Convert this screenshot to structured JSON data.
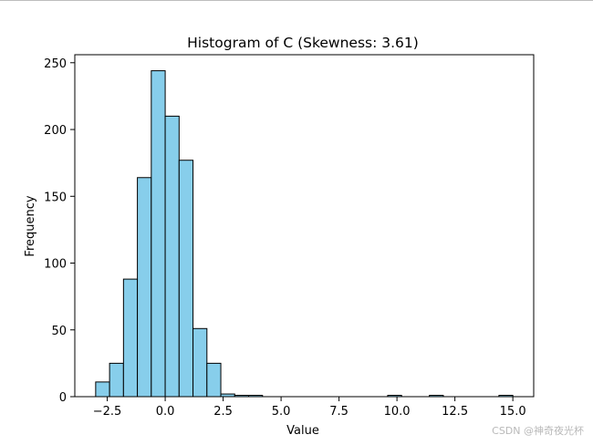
{
  "chart_data": {
    "type": "bar",
    "title": "Histogram of C (Skewness: 3.61)",
    "xlabel": "Value",
    "ylabel": "Frequency",
    "xlim": [
      -3.9,
      15.9
    ],
    "ylim": [
      0,
      256
    ],
    "x_ticks": [
      -2.5,
      0.0,
      2.5,
      5.0,
      7.5,
      10.0,
      12.5,
      15.0
    ],
    "x_tick_labels": [
      "−2.5",
      "0.0",
      "2.5",
      "5.0",
      "7.5",
      "10.0",
      "12.5",
      "15.0"
    ],
    "y_ticks": [
      0,
      50,
      100,
      150,
      200,
      250
    ],
    "y_tick_labels": [
      "0",
      "50",
      "100",
      "150",
      "200",
      "250"
    ],
    "bin_start": -3.0,
    "bin_width": 0.6,
    "values": [
      11,
      25,
      88,
      164,
      244,
      210,
      177,
      51,
      25,
      2,
      1,
      1,
      0,
      0,
      0,
      0,
      0,
      0,
      0,
      0,
      0,
      1,
      0,
      0,
      1,
      0,
      0,
      0,
      0,
      1
    ],
    "bar_color": "#87ceeb",
    "edge_color": "#000000",
    "grid": false,
    "legend": false
  },
  "watermark": "CSDN @神奇夜光杯"
}
